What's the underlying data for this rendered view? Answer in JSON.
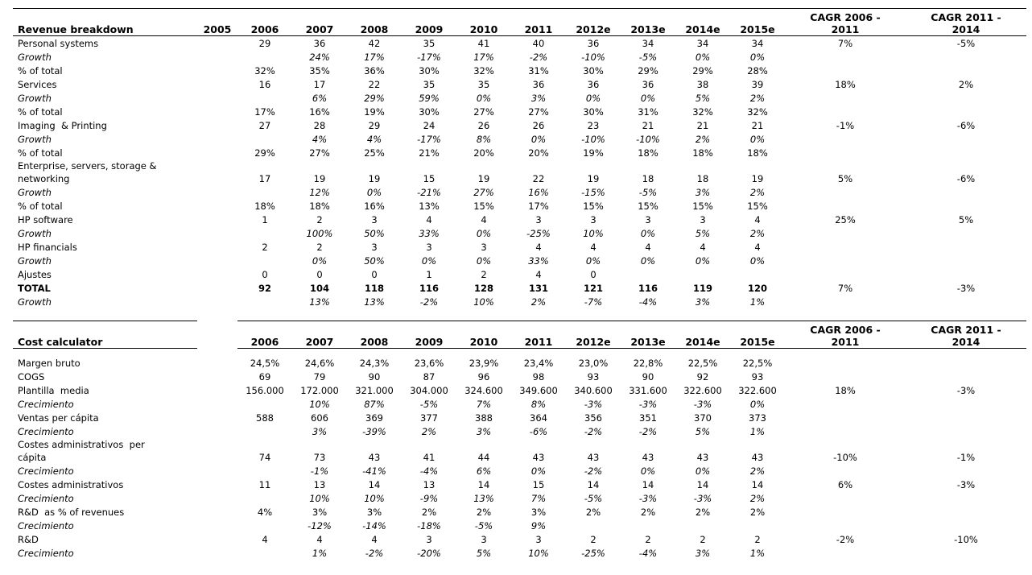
{
  "page": {
    "background": "#ffffff",
    "text_color": "#000000",
    "line_color": "#000000"
  },
  "sections": [
    {
      "title": "Revenue breakdown",
      "year_headers": [
        "2005",
        "2006",
        "2007",
        "2008",
        "2009",
        "2010",
        "2011",
        "2012e",
        "2013e",
        "2014e",
        "2015e"
      ],
      "cagr_headers": [
        "CAGR 2006 - 2011",
        "CAGR 2011 - 2014"
      ],
      "rows": [
        {
          "label": "Personal systems",
          "style": "normal",
          "values": [
            "",
            "29",
            "36",
            "42",
            "35",
            "41",
            "40",
            "36",
            "34",
            "34",
            "34",
            "7%",
            "-5%"
          ]
        },
        {
          "label": "Growth",
          "style": "growth",
          "values": [
            "",
            "",
            "24%",
            "17%",
            "-17%",
            "17%",
            "-2%",
            "-10%",
            "-5%",
            "0%",
            "0%",
            "",
            ""
          ]
        },
        {
          "label": "% of total",
          "style": "normal",
          "values": [
            "",
            "32%",
            "35%",
            "36%",
            "30%",
            "32%",
            "31%",
            "30%",
            "29%",
            "29%",
            "28%",
            "",
            ""
          ]
        },
        {
          "label": "Services",
          "style": "normal",
          "values": [
            "",
            "16",
            "17",
            "22",
            "35",
            "35",
            "36",
            "36",
            "36",
            "38",
            "39",
            "18%",
            "2%"
          ]
        },
        {
          "label": "Growth",
          "style": "growth",
          "values": [
            "",
            "",
            "6%",
            "29%",
            "59%",
            "0%",
            "3%",
            "0%",
            "0%",
            "5%",
            "2%",
            "",
            ""
          ]
        },
        {
          "label": "% of total",
          "style": "normal",
          "values": [
            "",
            "17%",
            "16%",
            "19%",
            "30%",
            "27%",
            "27%",
            "30%",
            "31%",
            "32%",
            "32%",
            "",
            ""
          ]
        },
        {
          "label": "Imaging  & Printing",
          "style": "normal",
          "values": [
            "",
            "27",
            "28",
            "29",
            "24",
            "26",
            "26",
            "23",
            "21",
            "21",
            "21",
            "-1%",
            "-6%"
          ]
        },
        {
          "label": "Growth",
          "style": "growth",
          "values": [
            "",
            "",
            "4%",
            "4%",
            "-17%",
            "8%",
            "0%",
            "-10%",
            "-10%",
            "2%",
            "0%",
            "",
            ""
          ]
        },
        {
          "label": "% of total",
          "style": "normal",
          "values": [
            "",
            "29%",
            "27%",
            "25%",
            "21%",
            "20%",
            "20%",
            "19%",
            "18%",
            "18%",
            "18%",
            "",
            ""
          ]
        },
        {
          "label": "Enterprise, servers, storage &\nnetworking",
          "style": "normal",
          "values": [
            "",
            "17",
            "19",
            "19",
            "15",
            "19",
            "22",
            "19",
            "18",
            "18",
            "19",
            "5%",
            "-6%"
          ]
        },
        {
          "label": "Growth",
          "style": "growth",
          "values": [
            "",
            "",
            "12%",
            "0%",
            "-21%",
            "27%",
            "16%",
            "-15%",
            "-5%",
            "3%",
            "2%",
            "",
            ""
          ]
        },
        {
          "label": "% of total",
          "style": "normal",
          "values": [
            "",
            "18%",
            "18%",
            "16%",
            "13%",
            "15%",
            "17%",
            "15%",
            "15%",
            "15%",
            "15%",
            "",
            ""
          ]
        },
        {
          "label": "HP software",
          "style": "normal",
          "values": [
            "",
            "1",
            "2",
            "3",
            "4",
            "4",
            "3",
            "3",
            "3",
            "3",
            "4",
            "25%",
            "5%"
          ]
        },
        {
          "label": "Growth",
          "style": "growth",
          "values": [
            "",
            "",
            "100%",
            "50%",
            "33%",
            "0%",
            "-25%",
            "10%",
            "0%",
            "5%",
            "2%",
            "",
            ""
          ]
        },
        {
          "label": "HP financials",
          "style": "normal",
          "values": [
            "",
            "2",
            "2",
            "3",
            "3",
            "3",
            "4",
            "4",
            "4",
            "4",
            "4",
            "",
            ""
          ]
        },
        {
          "label": "Growth",
          "style": "growth",
          "values": [
            "",
            "",
            "0%",
            "50%",
            "0%",
            "0%",
            "33%",
            "0%",
            "0%",
            "0%",
            "0%",
            "",
            ""
          ]
        },
        {
          "label": "Ajustes",
          "style": "normal",
          "values": [
            "",
            "0",
            "0",
            "0",
            "1",
            "2",
            "4",
            "0",
            "",
            "",
            "",
            "",
            ""
          ]
        },
        {
          "label": "TOTAL",
          "style": "bold",
          "values": [
            "",
            "92",
            "104",
            "118",
            "116",
            "128",
            "131",
            "121",
            "116",
            "119",
            "120",
            "7%",
            "-3%"
          ]
        },
        {
          "label": "Growth",
          "style": "growth",
          "values": [
            "",
            "",
            "13%",
            "13%",
            "-2%",
            "10%",
            "2%",
            "-7%",
            "-4%",
            "3%",
            "1%",
            "",
            ""
          ]
        }
      ]
    },
    {
      "title": "Cost calculator",
      "year_headers": [
        "",
        "2006",
        "2007",
        "2008",
        "2009",
        "2010",
        "2011",
        "2012e",
        "2013e",
        "2014e",
        "2015e"
      ],
      "cagr_headers": [
        "CAGR 2006 - 2011",
        "CAGR 2011 - 2014"
      ],
      "rows": [
        {
          "label": "Margen bruto",
          "style": "normal",
          "values": [
            "",
            "24,5%",
            "24,6%",
            "24,3%",
            "23,6%",
            "23,9%",
            "23,4%",
            "23,0%",
            "22,8%",
            "22,5%",
            "22,5%",
            "",
            ""
          ]
        },
        {
          "label": "COGS",
          "style": "normal",
          "values": [
            "",
            "69",
            "79",
            "90",
            "87",
            "96",
            "98",
            "93",
            "90",
            "92",
            "93",
            "",
            ""
          ]
        },
        {
          "label": "Plantilla  media",
          "style": "normal",
          "values": [
            "",
            "156.000",
            "172.000",
            "321.000",
            "304.000",
            "324.600",
            "349.600",
            "340.600",
            "331.600",
            "322.600",
            "322.600",
            "18%",
            "-3%"
          ]
        },
        {
          "label": "Crecimiento",
          "style": "growth",
          "values": [
            "",
            "",
            "10%",
            "87%",
            "-5%",
            "7%",
            "8%",
            "-3%",
            "-3%",
            "-3%",
            "0%",
            "",
            ""
          ]
        },
        {
          "label": "Ventas per cápita",
          "style": "normal",
          "values": [
            "",
            "588",
            "606",
            "369",
            "377",
            "388",
            "364",
            "356",
            "351",
            "370",
            "373",
            "",
            ""
          ]
        },
        {
          "label": "Crecimiento",
          "style": "growth",
          "values": [
            "",
            "",
            "3%",
            "-39%",
            "2%",
            "3%",
            "-6%",
            "-2%",
            "-2%",
            "5%",
            "1%",
            "",
            ""
          ]
        },
        {
          "label": "Costes administrativos  per\ncápita",
          "style": "normal",
          "values": [
            "",
            "74",
            "73",
            "43",
            "41",
            "44",
            "43",
            "43",
            "43",
            "43",
            "43",
            "-10%",
            "-1%"
          ]
        },
        {
          "label": "Crecimiento",
          "style": "growth",
          "values": [
            "",
            "",
            "-1%",
            "-41%",
            "-4%",
            "6%",
            "0%",
            "-2%",
            "0%",
            "0%",
            "2%",
            "",
            ""
          ]
        },
        {
          "label": "Costes administrativos",
          "style": "normal",
          "values": [
            "",
            "11",
            "13",
            "14",
            "13",
            "14",
            "15",
            "14",
            "14",
            "14",
            "14",
            "6%",
            "-3%"
          ]
        },
        {
          "label": "Crecimiento",
          "style": "growth",
          "values": [
            "",
            "",
            "10%",
            "10%",
            "-9%",
            "13%",
            "7%",
            "-5%",
            "-3%",
            "-3%",
            "2%",
            "",
            ""
          ]
        },
        {
          "label": "R&D  as % of revenues",
          "style": "normal",
          "values": [
            "",
            "4%",
            "3%",
            "3%",
            "2%",
            "2%",
            "3%",
            "2%",
            "2%",
            "2%",
            "2%",
            "",
            ""
          ]
        },
        {
          "label": "Crecimiento",
          "style": "growth",
          "values": [
            "",
            "",
            "-12%",
            "-14%",
            "-18%",
            "-5%",
            "9%",
            "",
            "",
            "",
            "",
            "",
            ""
          ]
        },
        {
          "label": "R&D",
          "style": "normal",
          "values": [
            "",
            "4",
            "4",
            "4",
            "3",
            "3",
            "3",
            "2",
            "2",
            "2",
            "2",
            "-2%",
            "-10%"
          ]
        },
        {
          "label": "Crecimiento",
          "style": "growth",
          "values": [
            "",
            "",
            "1%",
            "-2%",
            "-20%",
            "5%",
            "10%",
            "-25%",
            "-4%",
            "3%",
            "1%",
            "",
            ""
          ]
        }
      ]
    }
  ]
}
